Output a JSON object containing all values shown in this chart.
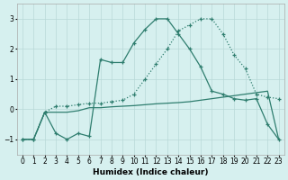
{
  "xlabel": "Humidex (Indice chaleur)",
  "x": [
    0,
    1,
    2,
    3,
    4,
    5,
    6,
    7,
    8,
    9,
    10,
    11,
    12,
    13,
    14,
    15,
    16,
    17,
    18,
    19,
    20,
    21,
    22,
    23
  ],
  "line_dotted": [
    -1.0,
    -1.0,
    -0.1,
    0.1,
    0.1,
    0.15,
    0.2,
    0.2,
    0.25,
    0.3,
    0.5,
    1.0,
    1.5,
    2.0,
    2.6,
    2.8,
    3.0,
    3.0,
    2.5,
    1.8,
    1.35,
    0.5,
    0.4,
    0.35
  ],
  "line_solid_marker": [
    -1.0,
    -1.0,
    -0.1,
    -0.8,
    -1.0,
    -0.8,
    -0.9,
    1.65,
    1.55,
    1.55,
    2.2,
    2.65,
    3.0,
    3.0,
    2.5,
    2.0,
    1.4,
    0.6,
    0.5,
    0.35,
    0.3,
    0.35,
    -0.5,
    -1.0
  ],
  "line_flat": [
    -1.0,
    -1.0,
    -0.1,
    -0.1,
    -0.1,
    -0.05,
    0.05,
    0.05,
    0.08,
    0.1,
    0.12,
    0.15,
    0.18,
    0.2,
    0.22,
    0.25,
    0.3,
    0.35,
    0.4,
    0.45,
    0.5,
    0.55,
    0.6,
    -1.0
  ],
  "bg_color": "#d6f0ef",
  "line_color": "#2e7d6e",
  "grid_color": "#b8d8d8",
  "ylim": [
    -1.5,
    3.5
  ],
  "xlim": [
    -0.5,
    23.5
  ]
}
